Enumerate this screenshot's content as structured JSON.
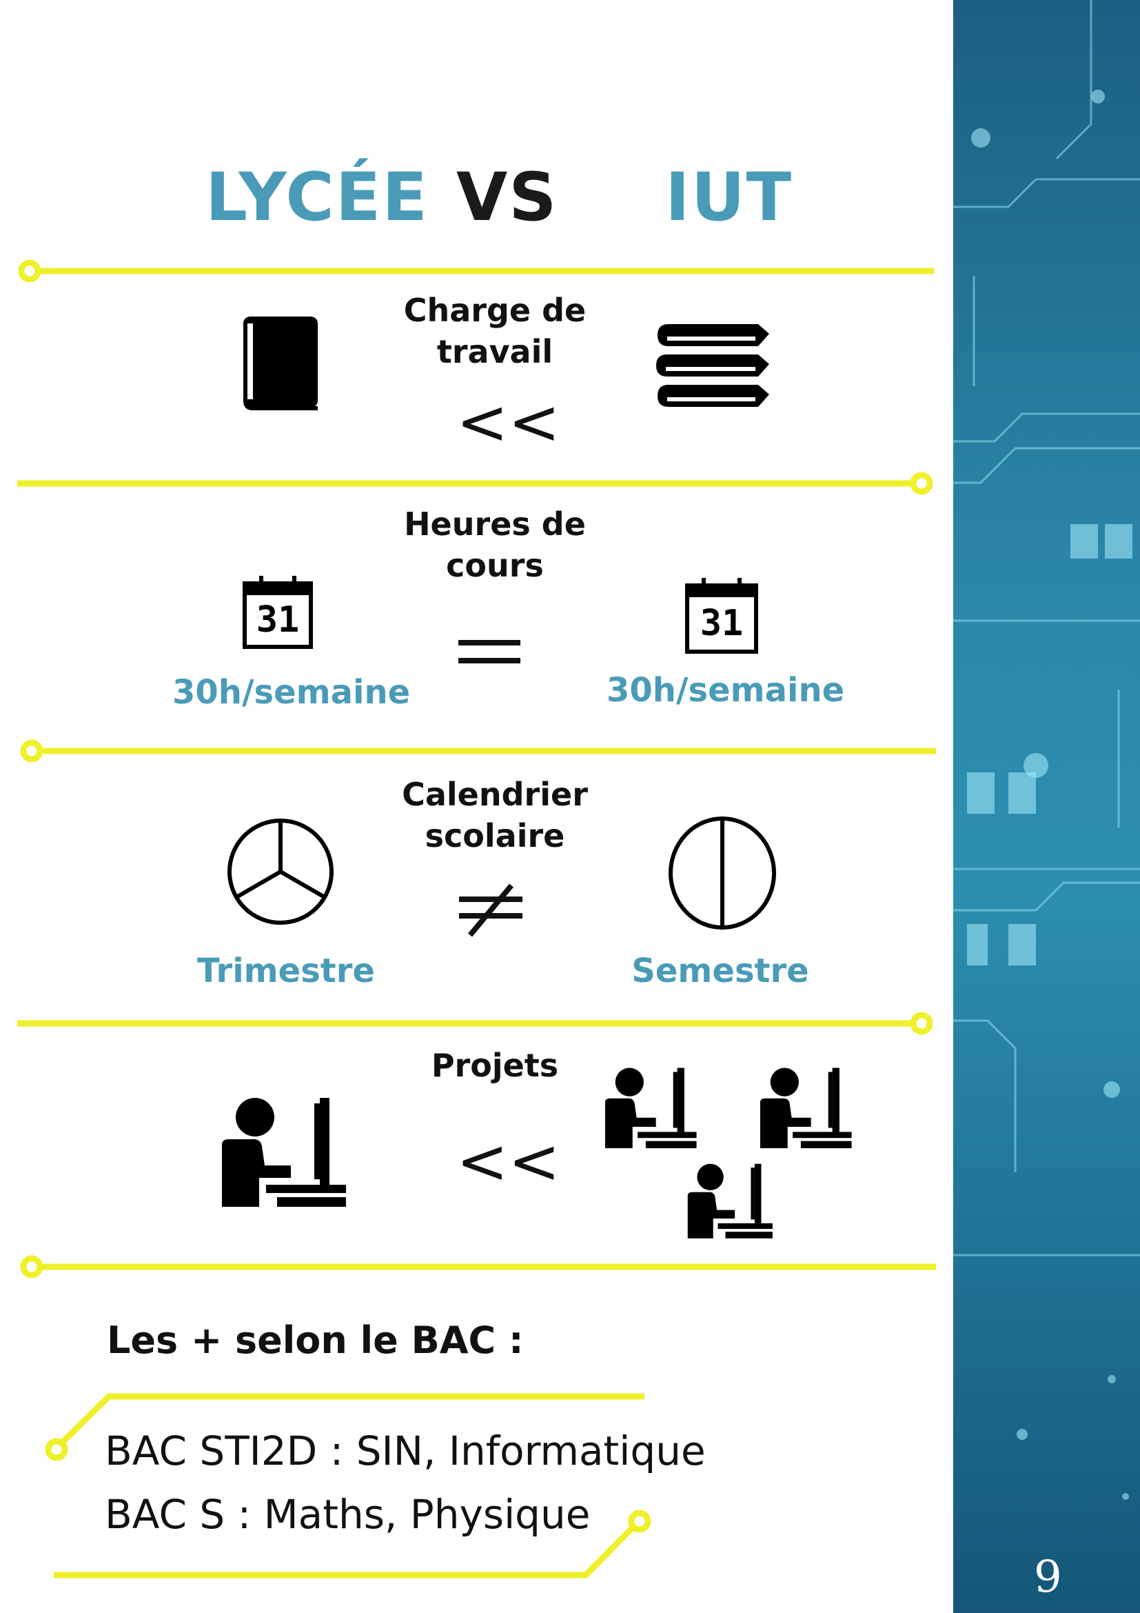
{
  "header": {
    "left": "LYCÉE",
    "middle": "VS",
    "right": "IUT"
  },
  "rows": [
    {
      "label_line1": "Charge de",
      "label_line2": "travail",
      "symbol": "<<",
      "left_icon": "book-icon",
      "right_icon": "books-stack-icon"
    },
    {
      "label_line1": "Heures de",
      "label_line2": "cours",
      "symbol": "=",
      "left_icon": "calendar-icon",
      "right_icon": "calendar-icon",
      "left_value": "30h/semaine",
      "right_value": "30h/semaine",
      "calendar_day": "31"
    },
    {
      "label_line1": "Calendrier",
      "label_line2": "scolaire",
      "symbol": "≠",
      "left_icon": "trimester-circle-icon",
      "right_icon": "semester-circle-icon",
      "left_value": "Trimestre",
      "right_value": "Semestre"
    },
    {
      "label_line1": "Projets",
      "symbol": "<<",
      "left_icon": "person-computer-icon",
      "right_icon": "group-computer-icon"
    }
  ],
  "bac": {
    "title": "Les + selon le BAC :",
    "line1": "BAC STI2D : SIN, Informatique",
    "line2": "BAC S : Maths, Physique"
  },
  "page_number": "9",
  "colors": {
    "accent": "#4a9bb8",
    "yellow": "#eef02a",
    "sidebar": "#2a86a8"
  }
}
